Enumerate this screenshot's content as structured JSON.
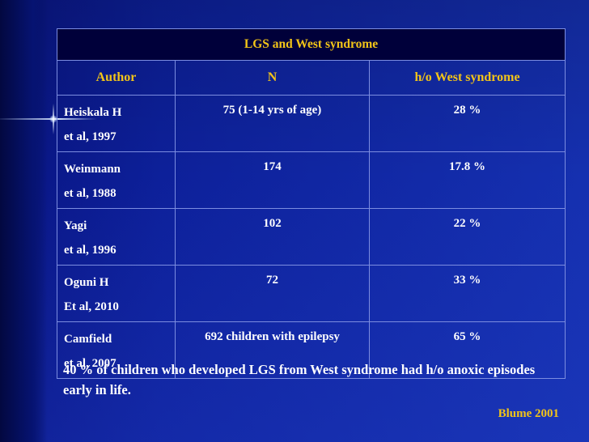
{
  "table": {
    "title": "LGS and West syndrome",
    "headers": [
      "Author",
      "N",
      "h/o West syndrome"
    ],
    "rows": [
      {
        "author_line1": "Heiskala H",
        "author_line2": "et al, 1997",
        "n": "75 (1-14 yrs of age)",
        "west": "28 %"
      },
      {
        "author_line1": "Weinmann",
        "author_line2": "et al, 1988",
        "n": "174",
        "west": "17.8 %"
      },
      {
        "author_line1": "Yagi",
        "author_line2": "et al, 1996",
        "n": "102",
        "west": "22 %"
      },
      {
        "author_line1": "Oguni H",
        "author_line2": "Et al, 2010",
        "n": "72",
        "west": "33 %"
      },
      {
        "author_line1": "Camfield",
        "author_line2": "et al, 2007",
        "n": "692 children with epilepsy",
        "west": "65 %"
      }
    ]
  },
  "note": "40 % of children who developed LGS from West syndrome had h/o anoxic episodes early in life.",
  "reference": "Blume 2001",
  "colors": {
    "background": "#0c1d8c",
    "title_bar": "#00003a",
    "accent_yellow": "#f2c418",
    "text_white": "#ffffff",
    "grid_line": "#7c8de0"
  }
}
